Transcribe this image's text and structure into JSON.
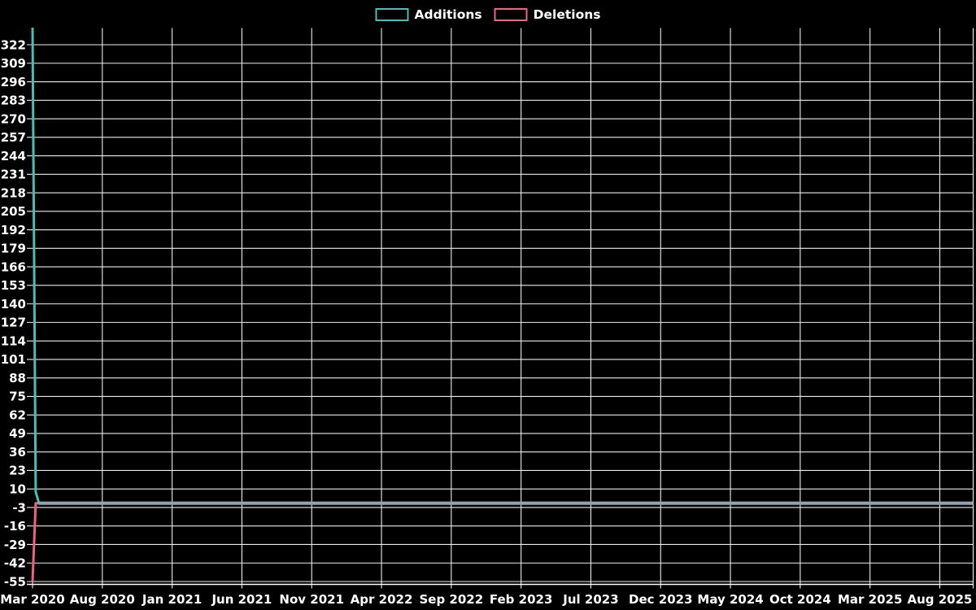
{
  "page": {
    "background": "#000000",
    "text_color": "#ffffff"
  },
  "legend": {
    "position": "top-center",
    "items": [
      {
        "label": "Additions",
        "color": "#4bbcb6"
      },
      {
        "label": "Deletions",
        "color": "#f2617f"
      }
    ]
  },
  "chart_data": {
    "type": "line",
    "title": "",
    "xlabel": "",
    "ylabel": "",
    "grid": true,
    "legend_position": "top",
    "background_color": "#000000",
    "grid_color": "#ececec",
    "axis_text_color": "#ffffff",
    "x_axis": {
      "type": "time",
      "tick_labels": [
        "Mar 2020",
        "Aug 2020",
        "Jan 2021",
        "Jun 2021",
        "Nov 2021",
        "Apr 2022",
        "Sep 2022",
        "Feb 2023",
        "Jul 2023",
        "Dec 2023",
        "May 2024",
        "Oct 2024",
        "Mar 2025",
        "Aug 2025"
      ]
    },
    "y_axis": {
      "tick_labels": [
        322,
        309,
        296,
        283,
        270,
        257,
        244,
        231,
        218,
        205,
        192,
        179,
        166,
        153,
        140,
        127,
        114,
        101,
        88,
        75,
        62,
        49,
        36,
        23,
        10,
        -3,
        -16,
        -29,
        -42,
        -55
      ],
      "tick_step": 13,
      "min": -55,
      "max": 334
    },
    "x_domain_weeks": [
      0,
      293
    ],
    "series": [
      {
        "name": "Additions",
        "color": "#4bbcb6",
        "points_weeks": [
          [
            0,
            334
          ],
          [
            1,
            8
          ],
          [
            2,
            0
          ],
          [
            293,
            0
          ]
        ]
      },
      {
        "name": "Deletions",
        "color": "#f2617f",
        "points_weeks": [
          [
            0,
            -55
          ],
          [
            1,
            0
          ],
          [
            293,
            0
          ]
        ]
      }
    ],
    "overlap_color": "#8ea4af"
  }
}
